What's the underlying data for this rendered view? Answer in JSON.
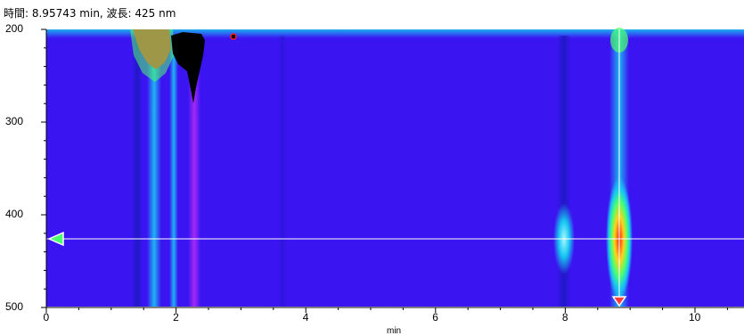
{
  "readout": "時間: 8.95743 min, 波長: 425 nm",
  "x_unit": "min",
  "colors": {
    "background_field": "#3b14f2",
    "low": "#3b14f2",
    "mid": "#18c7f2",
    "high": "#ff1a1a",
    "saturated": "#000000",
    "cursor": "#ffffff",
    "wavelength_marker": "#4cff6e",
    "time_marker": "#ff3b3b"
  },
  "chart_data": {
    "type": "heatmap",
    "title": "",
    "xlabel": "min",
    "ylabel": "",
    "xlim": [
      0,
      11
    ],
    "ylim": [
      200,
      500
    ],
    "y_inverted": true,
    "x_ticks": [
      "0",
      "2",
      "4",
      "6",
      "8",
      "10"
    ],
    "y_ticks": [
      "200",
      "300",
      "400",
      "500"
    ],
    "cursor": {
      "time_min": 8.95743,
      "wavelength_nm": 425
    },
    "features": [
      {
        "name": "peak-1.7",
        "x": 1.72,
        "y_from": 200,
        "y_to": 500,
        "intensity": "high-at-top"
      },
      {
        "name": "peak-2.0",
        "x": 2.0,
        "y_from": 200,
        "y_to": 500,
        "intensity": "mid"
      },
      {
        "name": "peak-2.3",
        "x": 2.3,
        "y_from": 200,
        "y_to": 500,
        "intensity": "low"
      },
      {
        "name": "peak-8.1",
        "x": 8.15,
        "y_from": 370,
        "y_to": 470,
        "intensity": "mid"
      },
      {
        "name": "peak-8.96",
        "x": 8.96,
        "y_from": 200,
        "y_to": 500,
        "intensity": "high-at-425"
      }
    ]
  }
}
